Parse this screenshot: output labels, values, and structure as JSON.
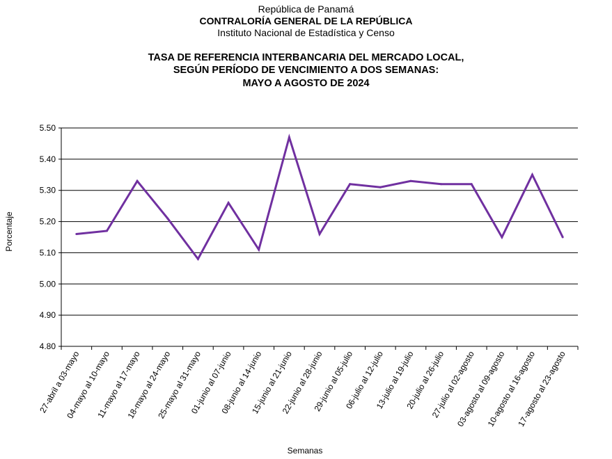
{
  "header": {
    "line1": "República de Panamá",
    "line2": "CONTRALORÍA GENERAL DE LA REPÚBLICA",
    "line3": "Instituto Nacional de Estadística y Censo"
  },
  "chart_data": {
    "type": "line",
    "title": [
      "TASA DE REFERENCIA INTERBANCARIA DEL MERCADO LOCAL,",
      "SEGÚN PERÍODO DE VENCIMIENTO A DOS SEMANAS:",
      "MAYO A AGOSTO DE 2024"
    ],
    "xlabel": "Semanas",
    "ylabel": "Porcentaje",
    "ylim": [
      4.8,
      5.5
    ],
    "yticks": [
      "4.80",
      "4.90",
      "5.00",
      "5.10",
      "5.20",
      "5.30",
      "5.40",
      "5.50"
    ],
    "grid": true,
    "legend": "none",
    "color": "#7030a0",
    "categories": [
      "27-abril a 03-mayo",
      "04-mayo al 10-mayo",
      "11-mayo al 17-mayo",
      "18-mayo al 24-mayo",
      "25-mayo al 31-mayo",
      "01-junio al 07-junio",
      "08-junio al 14-junio",
      "15-junio al 21-junio",
      "22-junio al 28-junio",
      "29-junio al 05-julio",
      "06-julio al 12-julio",
      "13-julio al 19-julio",
      "20-julio al 26-julio",
      "27-julio al 02-agosto",
      "03-agosto al 09-agosto",
      "10-agosto al 16-agosto",
      "17-agosto al 23-agosto"
    ],
    "values": [
      5.16,
      5.17,
      5.33,
      5.21,
      5.08,
      5.26,
      5.11,
      5.47,
      5.16,
      5.32,
      5.31,
      5.33,
      5.32,
      5.32,
      5.15,
      5.35,
      5.15
    ]
  }
}
